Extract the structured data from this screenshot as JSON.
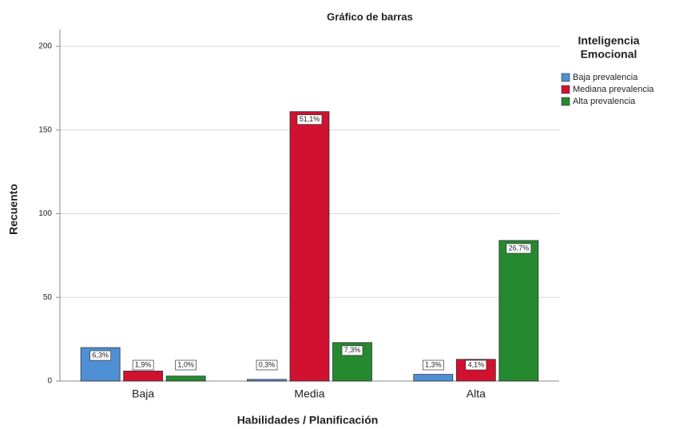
{
  "chart_data": {
    "type": "bar",
    "title": "Gráfico de barras",
    "x_label": "Habilidades / Planificación",
    "y_label": "Recuento",
    "legend_title": [
      "Inteligencia",
      "Emocional"
    ],
    "legend_position": "right",
    "categories": [
      "Baja",
      "Media",
      "Alta"
    ],
    "series": [
      {
        "name": "Baja prevalencia",
        "color": "#4f8fd6",
        "values": [
          20,
          1,
          4
        ],
        "percent_labels": [
          "6,3%",
          "0,3%",
          "1,3%"
        ]
      },
      {
        "name": "Mediana prevalencia",
        "color": "#d0112f",
        "values": [
          6,
          161,
          13
        ],
        "percent_labels": [
          "1,9%",
          "51,1%",
          "4,1%"
        ]
      },
      {
        "name": "Alta prevalencia",
        "color": "#25892f",
        "values": [
          3,
          23,
          84
        ],
        "percent_labels": [
          "1,0%",
          "7,3%",
          "26,7%"
        ]
      }
    ],
    "ylim": [
      0,
      210
    ],
    "yticks": [
      0,
      50,
      100,
      150,
      200
    ],
    "grid": true
  }
}
